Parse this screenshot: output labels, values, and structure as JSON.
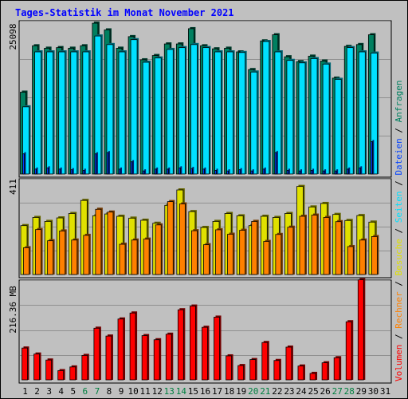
{
  "title": "Tages-Statistik im Monat November 2021",
  "legend": [
    {
      "label": "Volumen",
      "color": "#ff0000"
    },
    {
      "label": "Rechner",
      "color": "#ff8000"
    },
    {
      "label": "Besuche",
      "color": "#e0e000"
    },
    {
      "label": "Seiten",
      "color": "#00e0ff"
    },
    {
      "label": "Dateien",
      "color": "#0040ff"
    },
    {
      "label": "Anfragen",
      "color": "#008060"
    }
  ],
  "legend_separator": " / ",
  "chart_data": [
    {
      "type": "bar",
      "panel": "top",
      "ymax_label": "25098",
      "ylim": [
        0,
        25098
      ],
      "grid": true,
      "categories": [
        "1",
        "2",
        "3",
        "4",
        "5",
        "6",
        "7",
        "8",
        "9",
        "10",
        "11",
        "12",
        "13",
        "14",
        "15",
        "16",
        "17",
        "18",
        "19",
        "20",
        "21",
        "22",
        "23",
        "24",
        "25",
        "26",
        "27",
        "28",
        "29",
        "30",
        "31"
      ],
      "series": [
        {
          "name": "Anfragen",
          "color": "#008060",
          "values": [
            13400,
            21000,
            20600,
            20700,
            20600,
            21000,
            24700,
            23600,
            20600,
            22500,
            18700,
            19400,
            21300,
            21300,
            23800,
            21000,
            20500,
            20600,
            20000,
            17100,
            21800,
            22800,
            19200,
            18400,
            19300,
            18500,
            15700,
            20900,
            21200,
            22800,
            0
          ]
        },
        {
          "name": "Seiten",
          "color": "#00e0ff",
          "values": [
            11000,
            20000,
            20000,
            20000,
            20000,
            20000,
            22600,
            21200,
            20000,
            22000,
            18300,
            19000,
            20400,
            20700,
            21200,
            20700,
            20000,
            20000,
            19900,
            16700,
            21700,
            20000,
            18600,
            18200,
            18900,
            18000,
            15500,
            20700,
            20000,
            19800,
            0
          ]
        },
        {
          "name": "Dateien",
          "color": "#0040ff",
          "values": [
            3300,
            800,
            1000,
            800,
            700,
            600,
            3300,
            3500,
            800,
            2000,
            500,
            800,
            800,
            1000,
            900,
            800,
            600,
            500,
            700,
            500,
            800,
            3500,
            600,
            500,
            600,
            500,
            500,
            800,
            1000,
            5300,
            0
          ]
        }
      ]
    },
    {
      "type": "bar",
      "panel": "middle",
      "ymax_label": "411",
      "ylim": [
        0,
        411
      ],
      "grid": true,
      "categories": [
        "1",
        "2",
        "3",
        "4",
        "5",
        "6",
        "7",
        "8",
        "9",
        "10",
        "11",
        "12",
        "13",
        "14",
        "15",
        "16",
        "17",
        "18",
        "19",
        "20",
        "21",
        "22",
        "23",
        "24",
        "25",
        "26",
        "27",
        "28",
        "29",
        "30",
        "31"
      ],
      "series": [
        {
          "name": "Besuche",
          "color": "#e0e000",
          "values": [
            210,
            245,
            228,
            243,
            262,
            318,
            252,
            260,
            250,
            242,
            233,
            220,
            297,
            363,
            270,
            202,
            228,
            262,
            252,
            210,
            250,
            245,
            262,
            378,
            290,
            305,
            258,
            232,
            253,
            225,
            0
          ]
        },
        {
          "name": "Rechner",
          "color": "#ff8000",
          "values": [
            115,
            193,
            145,
            187,
            148,
            168,
            280,
            268,
            130,
            148,
            152,
            213,
            313,
            303,
            188,
            128,
            192,
            173,
            190,
            228,
            142,
            172,
            203,
            250,
            255,
            245,
            227,
            120,
            148,
            163,
            0
          ]
        }
      ]
    },
    {
      "type": "bar",
      "panel": "bottom",
      "ymax_label": "216.36 MB",
      "ylim": [
        0,
        216.36
      ],
      "grid": true,
      "categories": [
        "1",
        "2",
        "3",
        "4",
        "5",
        "6",
        "7",
        "8",
        "9",
        "10",
        "11",
        "12",
        "13",
        "14",
        "15",
        "16",
        "17",
        "18",
        "19",
        "20",
        "21",
        "22",
        "23",
        "24",
        "25",
        "26",
        "27",
        "28",
        "29",
        "30",
        "31"
      ],
      "series": [
        {
          "name": "Volumen",
          "color": "#ff0000",
          "values": [
            69,
            56,
            43,
            20,
            28,
            53,
            112,
            95,
            132,
            145,
            96,
            87,
            99,
            152,
            160,
            114,
            136,
            52,
            31,
            44,
            81,
            42,
            71,
            30,
            14,
            37,
            48,
            126,
            217,
            0,
            0
          ]
        }
      ]
    }
  ],
  "x_labels": [
    {
      "text": "1",
      "weekend": false
    },
    {
      "text": "2",
      "weekend": false
    },
    {
      "text": "3",
      "weekend": false
    },
    {
      "text": "4",
      "weekend": false
    },
    {
      "text": "5",
      "weekend": false
    },
    {
      "text": "6",
      "weekend": true
    },
    {
      "text": "7",
      "weekend": true
    },
    {
      "text": "8",
      "weekend": false
    },
    {
      "text": "9",
      "weekend": false
    },
    {
      "text": "10",
      "weekend": false
    },
    {
      "text": "11",
      "weekend": false
    },
    {
      "text": "12",
      "weekend": false
    },
    {
      "text": "13",
      "weekend": true
    },
    {
      "text": "14",
      "weekend": true
    },
    {
      "text": "15",
      "weekend": false
    },
    {
      "text": "16",
      "weekend": false
    },
    {
      "text": "17",
      "weekend": false
    },
    {
      "text": "18",
      "weekend": false
    },
    {
      "text": "19",
      "weekend": false
    },
    {
      "text": "20",
      "weekend": true
    },
    {
      "text": "21",
      "weekend": true
    },
    {
      "text": "22",
      "weekend": false
    },
    {
      "text": "23",
      "weekend": false
    },
    {
      "text": "24",
      "weekend": false
    },
    {
      "text": "25",
      "weekend": false
    },
    {
      "text": "26",
      "weekend": false
    },
    {
      "text": "27",
      "weekend": true
    },
    {
      "text": "28",
      "weekend": true
    },
    {
      "text": "29",
      "weekend": false
    },
    {
      "text": "30",
      "weekend": false
    },
    {
      "text": "31",
      "weekend": false
    }
  ],
  "colors": {
    "background": "#c0c0c0",
    "title": "#0000ff",
    "weekday_label": "#000000",
    "weekend_label": "#008040",
    "grid": "#909090"
  }
}
